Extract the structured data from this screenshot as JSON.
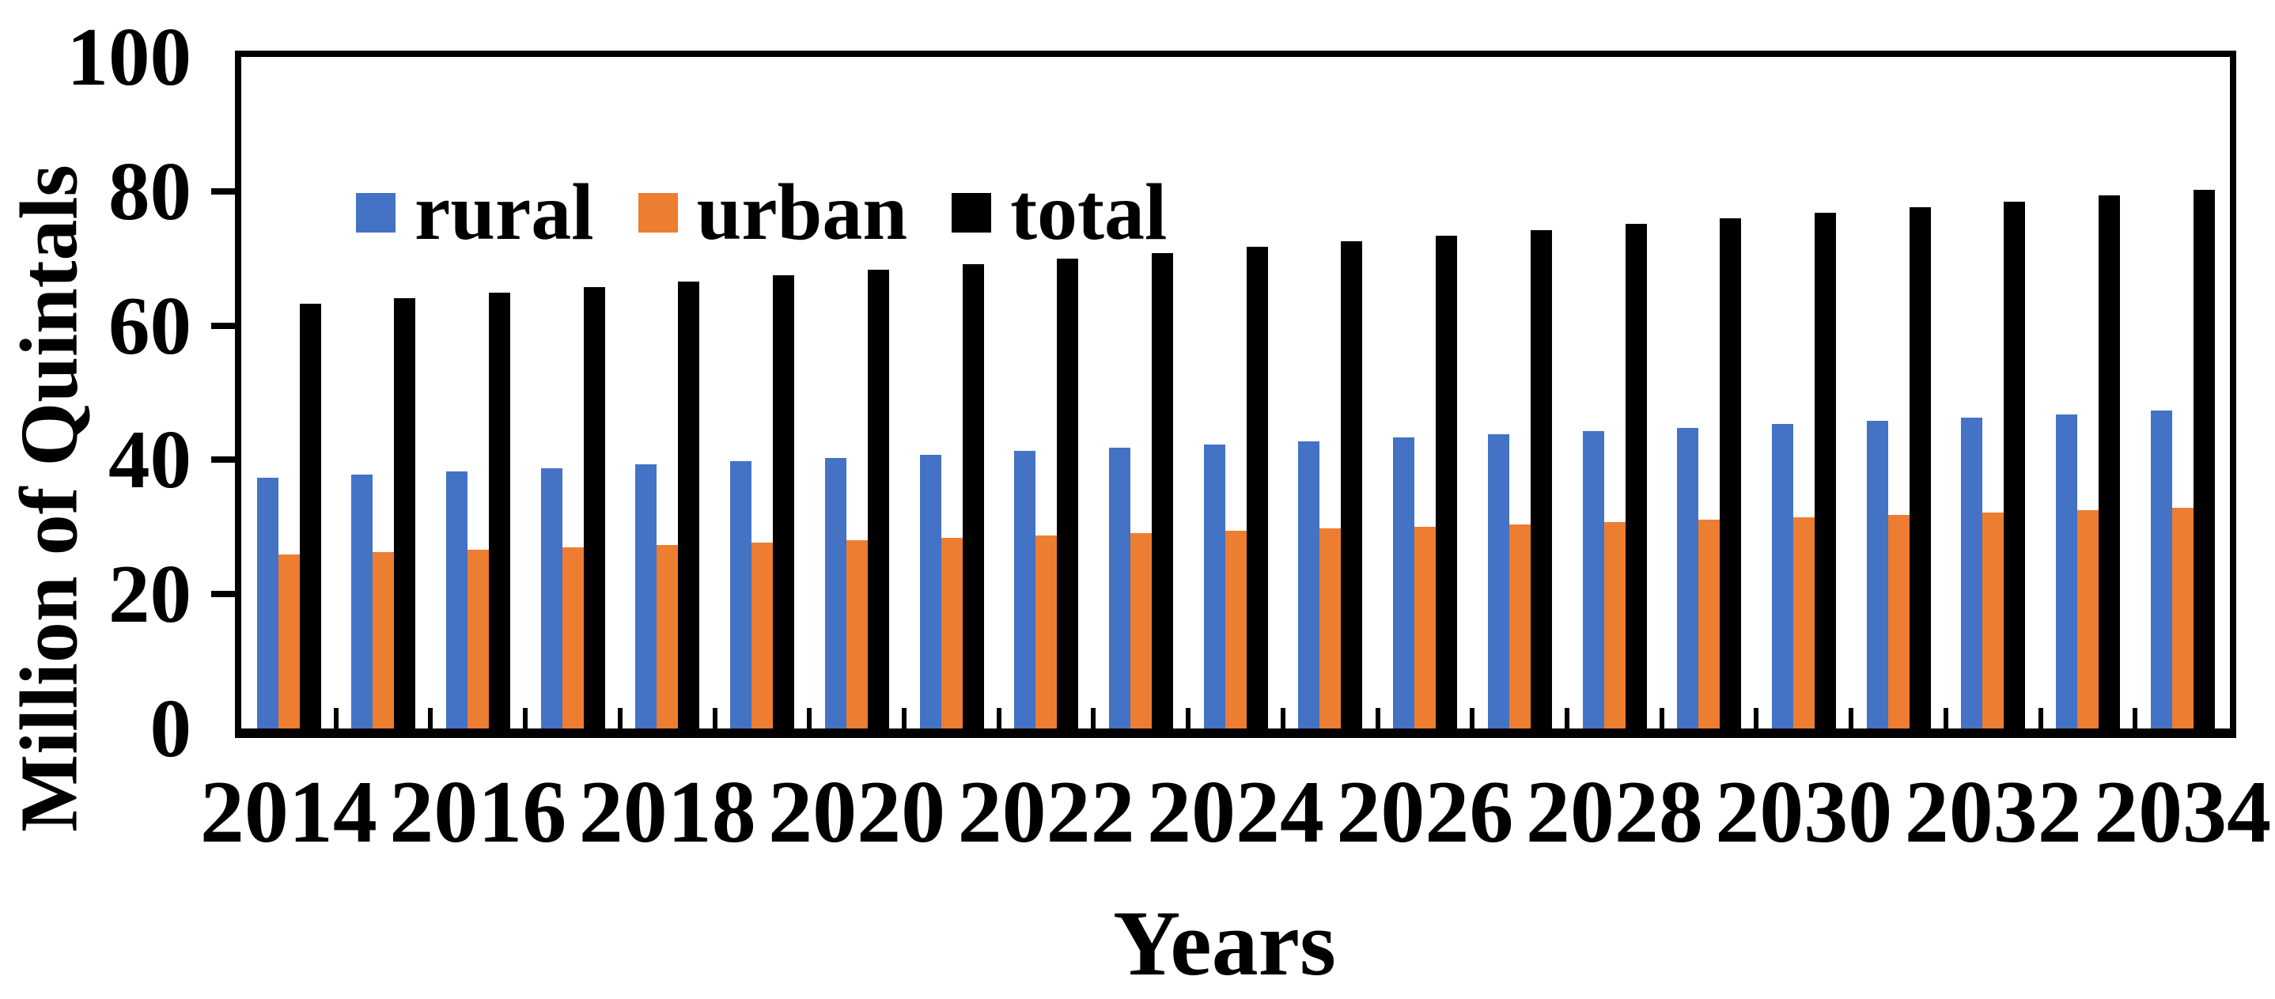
{
  "chart_data": {
    "type": "bar",
    "title": "",
    "xlabel": "Years",
    "ylabel": "Million of Quintals",
    "categories": [
      "2014",
      "2015",
      "2016",
      "2017",
      "2018",
      "2019",
      "2020",
      "2021",
      "2022",
      "2023",
      "2024",
      "2025",
      "2026",
      "2027",
      "2028",
      "2029",
      "2030",
      "2031",
      "2032",
      "2033",
      "2034"
    ],
    "x_tick_labels": [
      "2014",
      "2016",
      "2018",
      "2020",
      "2022",
      "2024",
      "2026",
      "2028",
      "2030",
      "2032",
      "2034"
    ],
    "y_ticks": [
      0,
      20,
      40,
      60,
      80,
      100
    ],
    "ylim": [
      0,
      100
    ],
    "grid": false,
    "legend_position": "inside-top-left",
    "series": [
      {
        "name": "rural",
        "color": "#4472C4",
        "values": [
          37.3,
          37.8,
          38.3,
          38.8,
          39.3,
          39.8,
          40.3,
          40.8,
          41.3,
          41.8,
          42.3,
          42.8,
          43.3,
          43.8,
          44.3,
          44.8,
          45.3,
          45.8,
          46.3,
          46.8,
          47.3
        ]
      },
      {
        "name": "urban",
        "color": "#ED7D31",
        "values": [
          25.9,
          26.25,
          26.6,
          26.95,
          27.3,
          27.65,
          28.0,
          28.35,
          28.7,
          29.05,
          29.4,
          29.75,
          30.1,
          30.45,
          30.8,
          31.15,
          31.5,
          31.85,
          32.2,
          32.55,
          32.9
        ]
      },
      {
        "name": "total",
        "color": "#000000",
        "values": [
          63.2,
          64.05,
          64.9,
          65.75,
          66.6,
          67.45,
          68.3,
          69.15,
          70.0,
          70.85,
          71.7,
          72.55,
          73.4,
          74.25,
          75.1,
          75.95,
          76.8,
          77.65,
          78.5,
          79.35,
          80.2
        ]
      }
    ]
  },
  "colors": {
    "background": "#FFFFFF",
    "axis": "#000000"
  }
}
